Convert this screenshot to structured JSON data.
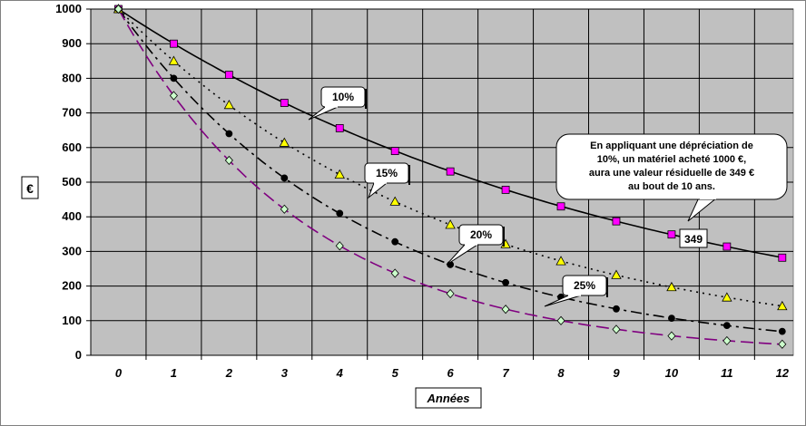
{
  "chart_data": {
    "type": "line",
    "xlabel": "Années",
    "ylabel": "€",
    "ylim": [
      0,
      1000
    ],
    "yticks": [
      0,
      100,
      200,
      300,
      400,
      500,
      600,
      700,
      800,
      900,
      1000
    ],
    "xlim": [
      -0.5,
      12.2
    ],
    "x": [
      0,
      1,
      2,
      3,
      4,
      5,
      6,
      7,
      8,
      9,
      10,
      11,
      12
    ],
    "grid": true,
    "background": "#c0c0c0",
    "series": [
      {
        "name": "10%",
        "marker": "square",
        "marker_color": "#ff00ff",
        "line_color": "#000000",
        "line_style": "solid",
        "values": [
          1000,
          900,
          810,
          729,
          656,
          590,
          531,
          478,
          430,
          387,
          349,
          314,
          282
        ]
      },
      {
        "name": "15%",
        "marker": "triangle",
        "marker_color": "#ffff00",
        "line_color": "#000000",
        "line_style": "dotted",
        "values": [
          1000,
          850,
          723,
          614,
          522,
          444,
          377,
          321,
          272,
          232,
          197,
          167,
          142
        ]
      },
      {
        "name": "20%",
        "marker": "circle",
        "marker_color": "#000000",
        "line_color": "#000000",
        "line_style": "dashdot",
        "values": [
          1000,
          800,
          640,
          512,
          410,
          328,
          262,
          210,
          168,
          134,
          107,
          86,
          69
        ]
      },
      {
        "name": "25%",
        "marker": "diamond",
        "marker_color": "#ccffcc",
        "line_color": "#800080",
        "line_style": "dashed",
        "values": [
          1000,
          750,
          563,
          422,
          316,
          237,
          178,
          133,
          100,
          75,
          56,
          42,
          32
        ]
      }
    ],
    "annotations": {
      "label_349": "349",
      "note_lines": [
        "En appliquant une dépréciation de",
        "10%, un matériel acheté 1000 €,",
        "aura une valeur résiduelle de 349 €",
        "au bout de 10 ans."
      ]
    }
  }
}
